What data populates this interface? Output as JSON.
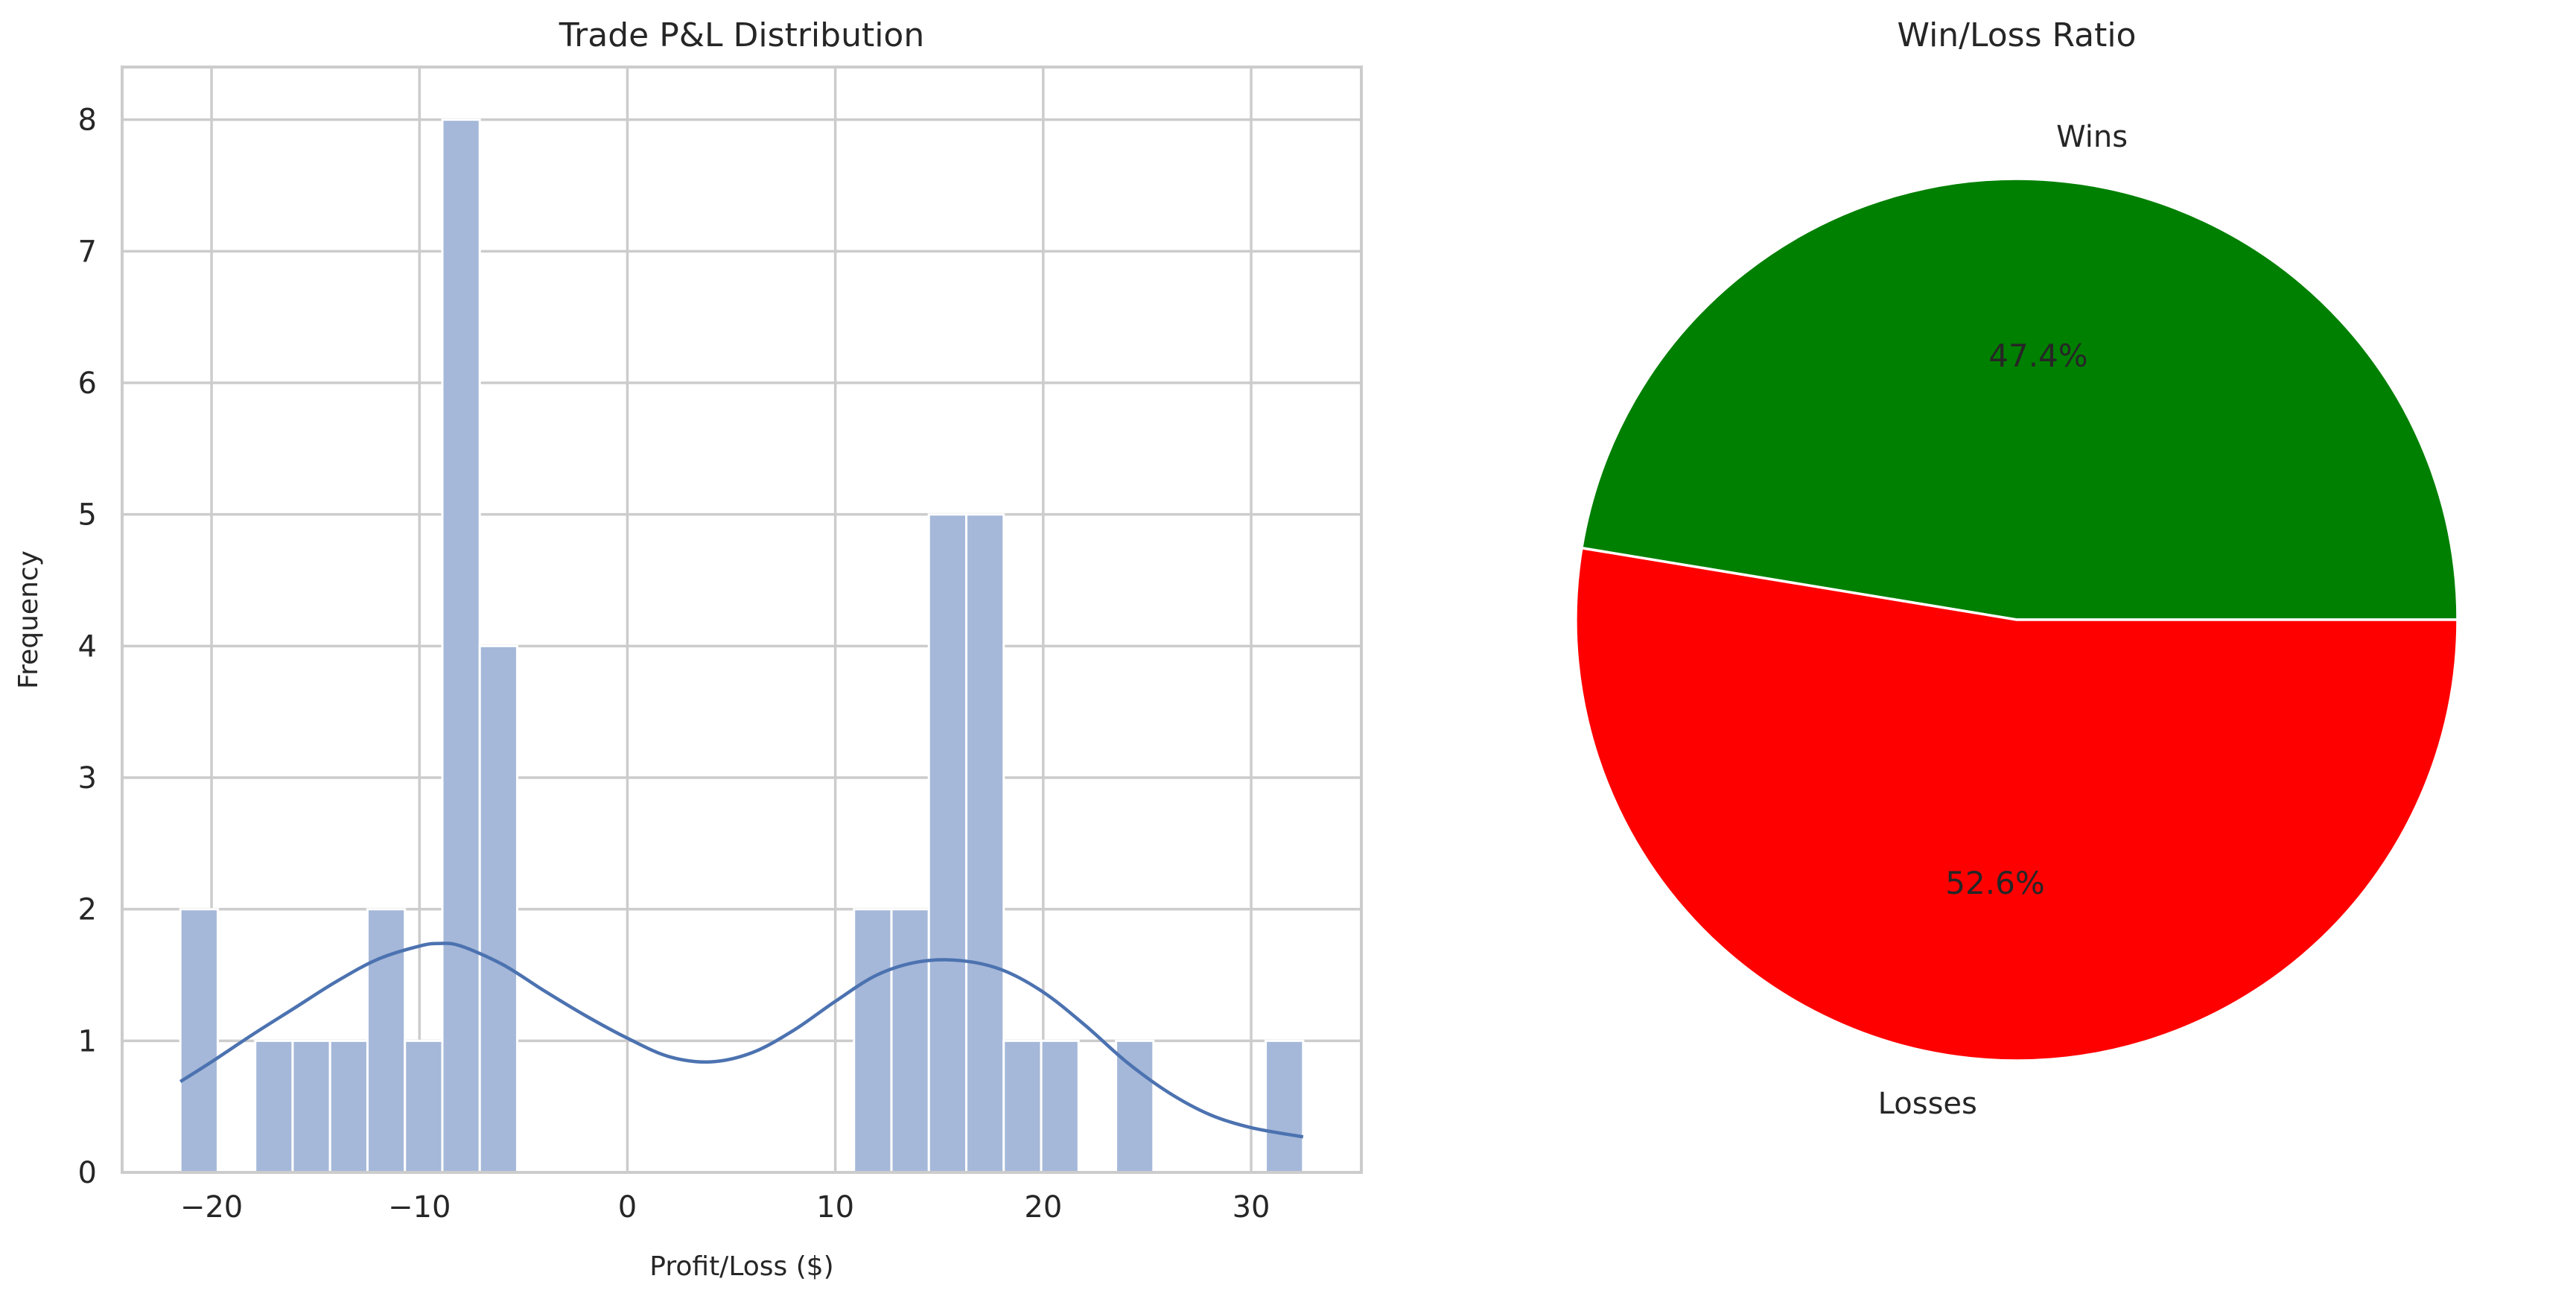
{
  "chart_data": [
    {
      "type": "bar",
      "subtype": "histogram",
      "title": "Trade P&L Distribution",
      "xlabel": "Profit/Loss ($)",
      "ylabel": "Frequency",
      "xlim": [
        -24.3,
        35.3
      ],
      "ylim": [
        0,
        8.4
      ],
      "xticks": [
        -20,
        -10,
        0,
        10,
        20,
        30
      ],
      "xtick_labels": [
        "−20",
        "−10",
        "0",
        "10",
        "20",
        "30"
      ],
      "yticks": [
        0,
        1,
        2,
        3,
        4,
        5,
        6,
        7,
        8
      ],
      "grid": true,
      "bar_color": "#a5b8d9",
      "bins": [
        {
          "start": -21.5,
          "end": -19.7,
          "count": 2
        },
        {
          "start": -19.7,
          "end": -17.9,
          "count": 0
        },
        {
          "start": -17.9,
          "end": -16.1,
          "count": 1
        },
        {
          "start": -16.1,
          "end": -14.3,
          "count": 1
        },
        {
          "start": -14.3,
          "end": -12.5,
          "count": 1
        },
        {
          "start": -12.5,
          "end": -10.7,
          "count": 2
        },
        {
          "start": -10.7,
          "end": -8.9,
          "count": 1
        },
        {
          "start": -8.9,
          "end": -7.1,
          "count": 8
        },
        {
          "start": -7.1,
          "end": -5.3,
          "count": 4
        },
        {
          "start": -5.3,
          "end": -3.5,
          "count": 0
        },
        {
          "start": -3.5,
          "end": -1.7,
          "count": 0
        },
        {
          "start": -1.7,
          "end": 0.1,
          "count": 0
        },
        {
          "start": 0.1,
          "end": 1.9,
          "count": 0
        },
        {
          "start": 1.9,
          "end": 3.7,
          "count": 0
        },
        {
          "start": 3.7,
          "end": 5.5,
          "count": 0
        },
        {
          "start": 5.5,
          "end": 7.3,
          "count": 0
        },
        {
          "start": 7.3,
          "end": 9.1,
          "count": 0
        },
        {
          "start": 9.1,
          "end": 10.9,
          "count": 0
        },
        {
          "start": 10.9,
          "end": 12.7,
          "count": 2
        },
        {
          "start": 12.7,
          "end": 14.5,
          "count": 2
        },
        {
          "start": 14.5,
          "end": 16.3,
          "count": 5
        },
        {
          "start": 16.3,
          "end": 18.1,
          "count": 5
        },
        {
          "start": 18.1,
          "end": 19.9,
          "count": 1
        },
        {
          "start": 19.9,
          "end": 21.7,
          "count": 1
        },
        {
          "start": 21.7,
          "end": 23.5,
          "count": 0
        },
        {
          "start": 23.5,
          "end": 25.3,
          "count": 1
        },
        {
          "start": 25.3,
          "end": 27.1,
          "count": 0
        },
        {
          "start": 27.1,
          "end": 28.9,
          "count": 0
        },
        {
          "start": 28.9,
          "end": 30.7,
          "count": 0
        },
        {
          "start": 30.7,
          "end": 32.5,
          "count": 1
        }
      ],
      "kde": {
        "color": "#4c72b0",
        "x": [
          -21.5,
          -20,
          -18,
          -16,
          -14,
          -12,
          -10,
          -9,
          -8,
          -6,
          -4,
          -2,
          0,
          2,
          4,
          6,
          8,
          10,
          12,
          14,
          16,
          18,
          20,
          22,
          24,
          26,
          28,
          30,
          32.5
        ],
        "y": [
          0.69,
          0.84,
          1.05,
          1.25,
          1.45,
          1.62,
          1.72,
          1.74,
          1.72,
          1.58,
          1.38,
          1.19,
          1.02,
          0.88,
          0.84,
          0.91,
          1.08,
          1.3,
          1.5,
          1.6,
          1.61,
          1.54,
          1.37,
          1.12,
          0.84,
          0.61,
          0.44,
          0.34,
          0.27
        ]
      }
    },
    {
      "type": "pie",
      "title": "Win/Loss Ratio",
      "labels": [
        "Wins",
        "Losses"
      ],
      "values": [
        47.4,
        52.6
      ],
      "value_labels": [
        "47.4%",
        "52.6%"
      ],
      "colors": [
        "#008000",
        "#ff0000"
      ]
    }
  ]
}
